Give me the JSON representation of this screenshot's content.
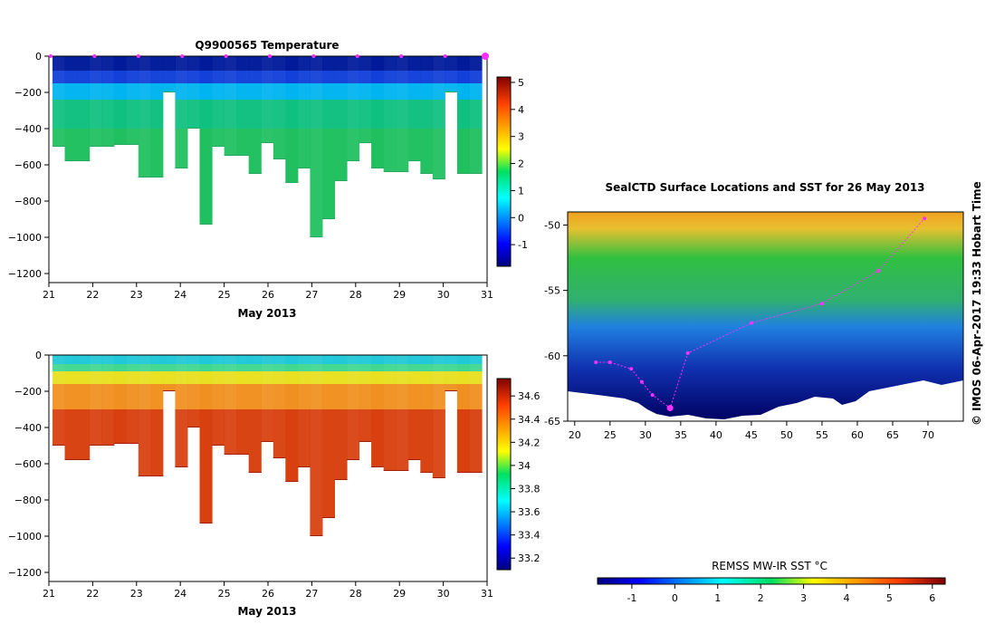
{
  "chart_data": [
    {
      "id": "temperature",
      "type": "heatmap",
      "title": "Q9900565  Temperature",
      "xlabel": "May 2013",
      "ylabel": "",
      "x_ticks": [
        "21",
        "22",
        "23",
        "24",
        "25",
        "26",
        "27",
        "28",
        "29",
        "30",
        "31"
      ],
      "y_ticks": [
        "0",
        "−200",
        "−400",
        "−600",
        "−800",
        "−1000",
        "−1200"
      ],
      "xlim": [
        21,
        31
      ],
      "ylim": [
        -1250,
        0
      ],
      "colorbar": {
        "range": [
          -1.8,
          5.2
        ],
        "ticks": [
          "-1",
          "0",
          "1",
          "2",
          "3",
          "4",
          "5"
        ]
      },
      "surface_markers_x": [
        21,
        22,
        23,
        24,
        25,
        26,
        27,
        28,
        29,
        30,
        31
      ],
      "profile_depths": [
        500,
        580,
        580,
        500,
        500,
        490,
        490,
        670,
        670,
        200,
        620,
        400,
        930,
        500,
        550,
        550,
        650,
        480,
        570,
        700,
        620,
        1000,
        900,
        690,
        580,
        480,
        620,
        640,
        640,
        580,
        650,
        680,
        200,
        650,
        650
      ],
      "values_summary": {
        "surface": -1.2,
        "mixed_top_to_200m": 0.3,
        "below_250m": 1.8
      }
    },
    {
      "id": "salinity",
      "type": "heatmap",
      "title": "",
      "xlabel": "May 2013",
      "ylabel": "",
      "x_ticks": [
        "21",
        "22",
        "23",
        "24",
        "25",
        "26",
        "27",
        "28",
        "29",
        "30",
        "31"
      ],
      "y_ticks": [
        "0",
        "−200",
        "−400",
        "−600",
        "−800",
        "−1000",
        "−1200"
      ],
      "xlim": [
        21,
        31
      ],
      "ylim": [
        -1250,
        0
      ],
      "colorbar": {
        "range": [
          33.1,
          34.75
        ],
        "ticks": [
          "33.2",
          "33.4",
          "33.6",
          "33.8",
          "34",
          "34.2",
          "34.4",
          "34.6"
        ]
      },
      "profile_depths": [
        500,
        580,
        580,
        500,
        500,
        490,
        490,
        670,
        670,
        200,
        620,
        400,
        930,
        500,
        550,
        550,
        650,
        480,
        570,
        700,
        620,
        1000,
        900,
        690,
        580,
        480,
        620,
        640,
        640,
        580,
        650,
        680,
        200,
        650,
        650
      ],
      "values_summary": {
        "surface": 33.6,
        "halocline_100_200m": 34.2,
        "below_300m": 34.7
      }
    },
    {
      "id": "sst_map",
      "type": "heatmap",
      "title": "SealCTD Surface Locations and SST for 26 May 2013",
      "x_ticks": [
        "20",
        "25",
        "30",
        "35",
        "40",
        "45",
        "50",
        "55",
        "60",
        "65",
        "70"
      ],
      "y_ticks": [
        "-50",
        "-55",
        "-60",
        "-65"
      ],
      "xlim": [
        19,
        75
      ],
      "ylim": [
        -65,
        -49
      ],
      "track": [
        [
          23,
          -60.5
        ],
        [
          25,
          -60.5
        ],
        [
          28,
          -61
        ],
        [
          29.5,
          -62
        ],
        [
          31,
          -63
        ],
        [
          33.5,
          -64
        ],
        [
          36,
          -59.8
        ],
        [
          45,
          -57.5
        ],
        [
          55,
          -56
        ],
        [
          63,
          -53.5
        ],
        [
          69.5,
          -49.5
        ]
      ],
      "colorbar_label": "REMSS MW-IR SST °C",
      "colorbar_ticks": [
        "-1",
        "0",
        "1",
        "2",
        "3",
        "4",
        "5",
        "6"
      ],
      "colorbar_range": [
        -1.8,
        6.3
      ]
    }
  ],
  "credit": "© IMOS 06-Apr-2017 19:33 Hobart Time"
}
